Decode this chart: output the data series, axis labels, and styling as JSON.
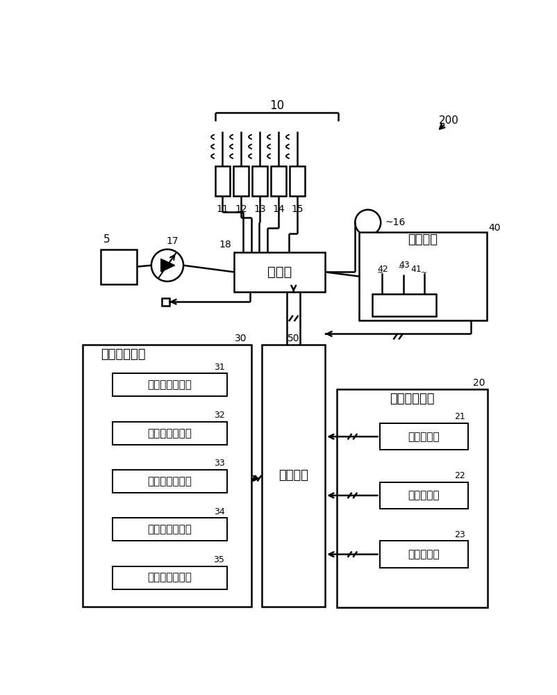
{
  "bg_color": "#ffffff",
  "lc": "#000000",
  "labels": {
    "10": "10",
    "11": "11",
    "12": "12",
    "13": "13",
    "14": "14",
    "15": "15",
    "16": "16",
    "17": "17",
    "18": "18",
    "5": "5",
    "200": "200",
    "valve": "阀装置",
    "control": "控制装置",
    "op_device": "操作装置",
    "op_num": "40",
    "angle_device": "角度检测装置",
    "angle_num": "30",
    "pos_device": "位置运算装置",
    "pos_num": "20",
    "50": "50",
    "sub31": "动臂角度检测器",
    "sub32": "斗杆角度检测器",
    "sub33": "铲斗角度检测器",
    "sub34": "侧倾角度检测器",
    "sub35": "旋动角度检测器",
    "sub21": "位置运算器",
    "sub22": "姿势运算器",
    "sub23": "方位运算器",
    "31": "31",
    "32": "32",
    "33": "33",
    "34": "34",
    "35": "35",
    "21": "21",
    "22": "22",
    "23": "23",
    "42": "42",
    "43": "43",
    "41": "41"
  }
}
